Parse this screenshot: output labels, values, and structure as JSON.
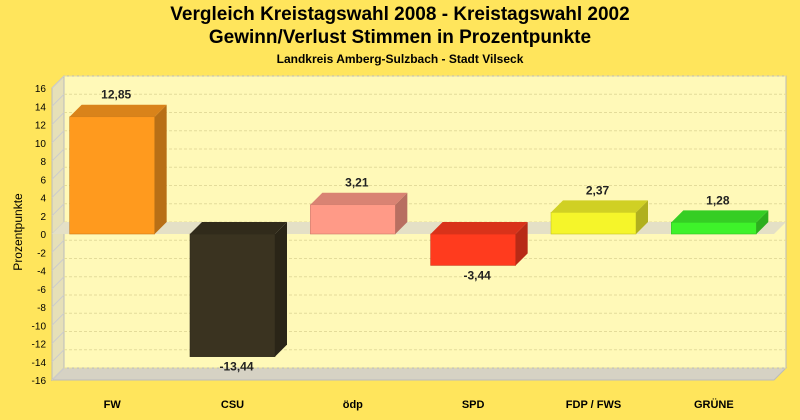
{
  "chart_data": {
    "type": "bar",
    "title": "Vergleich Kreistagswahl 2008 - Kreistagswahl 2002",
    "subtitle": "Gewinn/Verlust Stimmen in Prozentpunkte",
    "subsubtitle": "Landkreis Amberg-Sulzbach - Stadt Vilseck",
    "ylabel": "Prozentpunkte",
    "xlabel": "",
    "ylim": [
      -16,
      16
    ],
    "yticks": [
      16,
      14,
      12,
      10,
      8,
      6,
      4,
      2,
      0,
      -2,
      -4,
      -6,
      -8,
      -10,
      -12,
      -14,
      -16
    ],
    "categories": [
      "FW",
      "CSU",
      "ödp",
      "SPD",
      "FDP / FWS",
      "GRÜNE"
    ],
    "values": [
      12.85,
      -13.44,
      3.21,
      -3.44,
      2.37,
      1.28
    ],
    "value_labels": [
      "12,85",
      "-13,44",
      "3,21",
      "-3,44",
      "2,37",
      "1,28"
    ],
    "colors": [
      "#ff9a1e",
      "#3a3320",
      "#ff9a87",
      "#ff3b1e",
      "#f5f52a",
      "#3ef22a"
    ],
    "grid": true,
    "background": "#fff9b8"
  }
}
